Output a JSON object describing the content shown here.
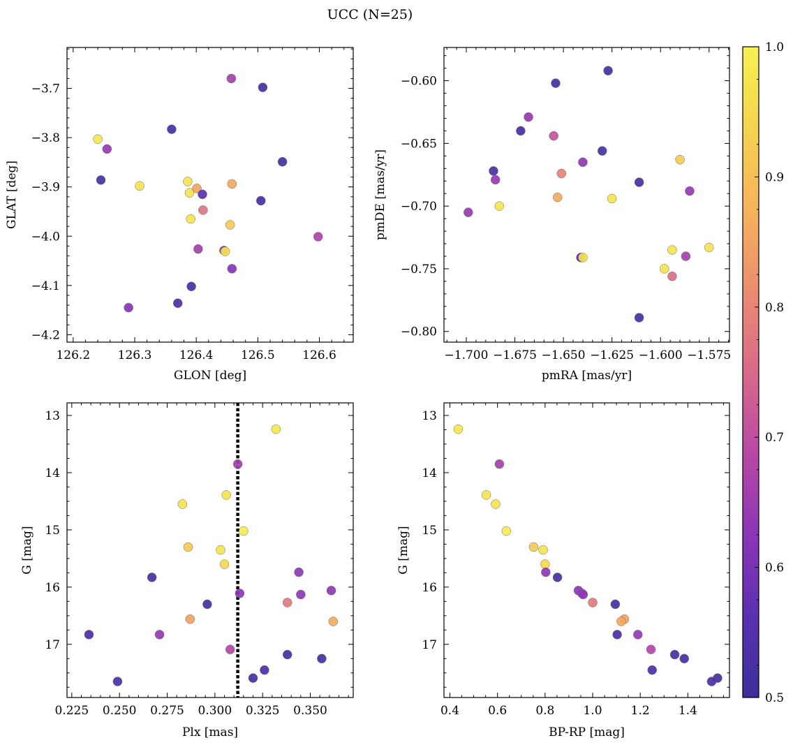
{
  "figure": {
    "title": "UCC (N=25)"
  },
  "colorbar": {
    "range": [
      0.5,
      1.0
    ],
    "ticks": [
      "0.5",
      "0.6",
      "0.7",
      "0.8",
      "0.9",
      "1.0"
    ],
    "colormap": "plasma",
    "colormap_stops": [
      "#3c2f9a",
      "#5a30b0",
      "#8b35b6",
      "#b848a5",
      "#d8698b",
      "#eb8c6e",
      "#f7b35b",
      "#f5d34f",
      "#f6f150"
    ]
  },
  "chart_data": [
    {
      "type": "scatter",
      "name": "glon-glat",
      "xlabel": "GLON [deg]",
      "ylabel": "GLAT [deg]",
      "xlim": [
        126.19,
        126.655
      ],
      "ylim": [
        -4.215,
        -3.617
      ],
      "x_ticks": [
        126.2,
        126.3,
        126.4,
        126.5,
        126.6
      ],
      "x_tick_labels": [
        "126.2",
        "126.3",
        "126.4",
        "126.5",
        "126.6"
      ],
      "y_ticks": [
        -4.2,
        -4.1,
        -4.0,
        -3.9,
        -3.8,
        -3.7
      ],
      "y_tick_labels": [
        "−4.2",
        "−4.1",
        "−4.0",
        "−3.9",
        "−3.8",
        "−3.7"
      ],
      "grid": false,
      "points": [
        {
          "x": 126.24,
          "y": -3.803,
          "c": 0.98
        },
        {
          "x": 126.255,
          "y": -3.823,
          "c": 0.64
        },
        {
          "x": 126.245,
          "y": -3.886,
          "c": 0.52
        },
        {
          "x": 126.308,
          "y": -3.898,
          "c": 0.97
        },
        {
          "x": 126.29,
          "y": -4.145,
          "c": 0.62
        },
        {
          "x": 126.36,
          "y": -3.783,
          "c": 0.52
        },
        {
          "x": 126.37,
          "y": -4.136,
          "c": 0.53
        },
        {
          "x": 126.386,
          "y": -3.889,
          "c": 0.97
        },
        {
          "x": 126.389,
          "y": -3.912,
          "c": 0.97
        },
        {
          "x": 126.391,
          "y": -3.965,
          "c": 0.97
        },
        {
          "x": 126.392,
          "y": -4.102,
          "c": 0.52
        },
        {
          "x": 126.401,
          "y": -3.903,
          "c": 0.85
        },
        {
          "x": 126.403,
          "y": -4.026,
          "c": 0.66
        },
        {
          "x": 126.41,
          "y": -3.915,
          "c": 0.56
        },
        {
          "x": 126.411,
          "y": -3.947,
          "c": 0.77
        },
        {
          "x": 126.445,
          "y": -4.029,
          "c": 0.63
        },
        {
          "x": 126.447,
          "y": -4.031,
          "c": 0.97
        },
        {
          "x": 126.455,
          "y": -3.977,
          "c": 0.92
        },
        {
          "x": 126.457,
          "y": -3.68,
          "c": 0.66
        },
        {
          "x": 126.458,
          "y": -3.894,
          "c": 0.86
        },
        {
          "x": 126.458,
          "y": -4.066,
          "c": 0.62
        },
        {
          "x": 126.505,
          "y": -3.928,
          "c": 0.52
        },
        {
          "x": 126.508,
          "y": -3.698,
          "c": 0.52
        },
        {
          "x": 126.54,
          "y": -3.849,
          "c": 0.52
        },
        {
          "x": 126.598,
          "y": -4.001,
          "c": 0.67
        }
      ]
    },
    {
      "type": "scatter",
      "name": "pmra-pmde",
      "xlabel": "pmRA [mas/yr]",
      "ylabel": "pmDE [mas/yr]",
      "xlim": [
        -1.7115,
        -1.5645
      ],
      "ylim": [
        -0.8085,
        -0.5735
      ],
      "x_ticks": [
        -1.7,
        -1.675,
        -1.65,
        -1.625,
        -1.6,
        -1.575
      ],
      "x_tick_labels": [
        "−1.700",
        "−1.675",
        "−1.650",
        "−1.625",
        "−1.600",
        "−1.575"
      ],
      "y_ticks": [
        -0.8,
        -0.75,
        -0.7,
        -0.65,
        -0.6
      ],
      "y_tick_labels": [
        "−0.80",
        "−0.75",
        "−0.70",
        "−0.65",
        "−0.60"
      ],
      "grid": false,
      "points": [
        {
          "x": -1.699,
          "y": -0.705,
          "c": 0.64
        },
        {
          "x": -1.686,
          "y": -0.672,
          "c": 0.52
        },
        {
          "x": -1.685,
          "y": -0.679,
          "c": 0.64
        },
        {
          "x": -1.683,
          "y": -0.7,
          "c": 0.97
        },
        {
          "x": -1.672,
          "y": -0.64,
          "c": 0.52
        },
        {
          "x": -1.668,
          "y": -0.629,
          "c": 0.64
        },
        {
          "x": -1.655,
          "y": -0.644,
          "c": 0.71
        },
        {
          "x": -1.654,
          "y": -0.602,
          "c": 0.52
        },
        {
          "x": -1.653,
          "y": -0.693,
          "c": 0.86
        },
        {
          "x": -1.651,
          "y": -0.674,
          "c": 0.8
        },
        {
          "x": -1.641,
          "y": -0.741,
          "c": 0.52
        },
        {
          "x": -1.64,
          "y": -0.741,
          "c": 0.97
        },
        {
          "x": -1.64,
          "y": -0.665,
          "c": 0.63
        },
        {
          "x": -1.63,
          "y": -0.656,
          "c": 0.53
        },
        {
          "x": -1.627,
          "y": -0.592,
          "c": 0.52
        },
        {
          "x": -1.625,
          "y": -0.694,
          "c": 0.97
        },
        {
          "x": -1.611,
          "y": -0.681,
          "c": 0.52
        },
        {
          "x": -1.611,
          "y": -0.789,
          "c": 0.52
        },
        {
          "x": -1.598,
          "y": -0.75,
          "c": 0.97
        },
        {
          "x": -1.594,
          "y": -0.735,
          "c": 0.97
        },
        {
          "x": -1.594,
          "y": -0.756,
          "c": 0.76
        },
        {
          "x": -1.59,
          "y": -0.663,
          "c": 0.92
        },
        {
          "x": -1.587,
          "y": -0.74,
          "c": 0.66
        },
        {
          "x": -1.585,
          "y": -0.688,
          "c": 0.64
        },
        {
          "x": -1.575,
          "y": -0.733,
          "c": 0.97
        }
      ]
    },
    {
      "type": "scatter",
      "name": "plx-g",
      "xlabel": "Plx [mas]",
      "ylabel": "G [mag]",
      "xlim": [
        0.2225,
        0.3725
      ],
      "ylim": [
        17.93,
        12.78
      ],
      "y_inverted": true,
      "x_ticks": [
        0.225,
        0.25,
        0.275,
        0.3,
        0.325,
        0.35
      ],
      "x_tick_labels": [
        "0.225",
        "0.250",
        "0.275",
        "0.300",
        "0.325",
        "0.350"
      ],
      "y_ticks": [
        13,
        14,
        15,
        16,
        17
      ],
      "y_tick_labels": [
        "13",
        "14",
        "15",
        "16",
        "17"
      ],
      "grid": false,
      "vline": {
        "x": 0.312,
        "style": "dotted",
        "color": "#000000"
      },
      "points": [
        {
          "x": 0.332,
          "y": 13.24,
          "c": 0.98
        },
        {
          "x": 0.312,
          "y": 13.85,
          "c": 0.66
        },
        {
          "x": 0.306,
          "y": 14.39,
          "c": 0.97
        },
        {
          "x": 0.283,
          "y": 14.55,
          "c": 0.97
        },
        {
          "x": 0.315,
          "y": 15.02,
          "c": 0.99
        },
        {
          "x": 0.286,
          "y": 15.3,
          "c": 0.92
        },
        {
          "x": 0.303,
          "y": 15.35,
          "c": 0.97
        },
        {
          "x": 0.305,
          "y": 15.6,
          "c": 0.95
        },
        {
          "x": 0.344,
          "y": 15.74,
          "c": 0.63
        },
        {
          "x": 0.267,
          "y": 15.83,
          "c": 0.52
        },
        {
          "x": 0.361,
          "y": 16.06,
          "c": 0.63
        },
        {
          "x": 0.313,
          "y": 16.11,
          "c": 0.63
        },
        {
          "x": 0.345,
          "y": 16.13,
          "c": 0.63
        },
        {
          "x": 0.338,
          "y": 16.27,
          "c": 0.78
        },
        {
          "x": 0.296,
          "y": 16.3,
          "c": 0.52
        },
        {
          "x": 0.287,
          "y": 16.56,
          "c": 0.85
        },
        {
          "x": 0.362,
          "y": 16.6,
          "c": 0.86
        },
        {
          "x": 0.234,
          "y": 16.83,
          "c": 0.53
        },
        {
          "x": 0.271,
          "y": 16.83,
          "c": 0.64
        },
        {
          "x": 0.308,
          "y": 17.09,
          "c": 0.68
        },
        {
          "x": 0.338,
          "y": 17.18,
          "c": 0.52
        },
        {
          "x": 0.356,
          "y": 17.25,
          "c": 0.52
        },
        {
          "x": 0.326,
          "y": 17.45,
          "c": 0.53
        },
        {
          "x": 0.32,
          "y": 17.59,
          "c": 0.52
        },
        {
          "x": 0.249,
          "y": 17.65,
          "c": 0.53
        }
      ]
    },
    {
      "type": "scatter",
      "name": "bprp-g",
      "xlabel": "BP-RP [mag]",
      "ylabel": "G [mag]",
      "xlim": [
        0.375,
        1.575
      ],
      "ylim": [
        17.93,
        12.78
      ],
      "y_inverted": true,
      "x_ticks": [
        0.4,
        0.6,
        0.8,
        1.0,
        1.2,
        1.4
      ],
      "x_tick_labels": [
        "0.4",
        "0.6",
        "0.8",
        "1.0",
        "1.2",
        "1.4"
      ],
      "y_ticks": [
        13,
        14,
        15,
        16,
        17
      ],
      "y_tick_labels": [
        "13",
        "14",
        "15",
        "16",
        "17"
      ],
      "grid": false,
      "points": [
        {
          "x": 0.435,
          "y": 13.24,
          "c": 0.98
        },
        {
          "x": 0.608,
          "y": 13.85,
          "c": 0.66
        },
        {
          "x": 0.553,
          "y": 14.39,
          "c": 0.97
        },
        {
          "x": 0.592,
          "y": 14.55,
          "c": 0.97
        },
        {
          "x": 0.637,
          "y": 15.02,
          "c": 0.99
        },
        {
          "x": 0.752,
          "y": 15.3,
          "c": 0.92
        },
        {
          "x": 0.792,
          "y": 15.35,
          "c": 0.97
        },
        {
          "x": 0.8,
          "y": 15.6,
          "c": 0.95
        },
        {
          "x": 0.803,
          "y": 15.74,
          "c": 0.63
        },
        {
          "x": 0.852,
          "y": 15.83,
          "c": 0.52
        },
        {
          "x": 0.94,
          "y": 16.06,
          "c": 0.63
        },
        {
          "x": 0.955,
          "y": 16.11,
          "c": 0.63
        },
        {
          "x": 0.96,
          "y": 16.13,
          "c": 0.63
        },
        {
          "x": 1.0,
          "y": 16.27,
          "c": 0.78
        },
        {
          "x": 1.095,
          "y": 16.3,
          "c": 0.52
        },
        {
          "x": 1.133,
          "y": 16.56,
          "c": 0.85
        },
        {
          "x": 1.12,
          "y": 16.6,
          "c": 0.86
        },
        {
          "x": 1.103,
          "y": 16.83,
          "c": 0.53
        },
        {
          "x": 1.19,
          "y": 16.83,
          "c": 0.64
        },
        {
          "x": 1.245,
          "y": 17.09,
          "c": 0.68
        },
        {
          "x": 1.345,
          "y": 17.18,
          "c": 0.52
        },
        {
          "x": 1.385,
          "y": 17.25,
          "c": 0.52
        },
        {
          "x": 1.25,
          "y": 17.45,
          "c": 0.53
        },
        {
          "x": 1.525,
          "y": 17.59,
          "c": 0.52
        },
        {
          "x": 1.5,
          "y": 17.65,
          "c": 0.53
        }
      ]
    }
  ]
}
